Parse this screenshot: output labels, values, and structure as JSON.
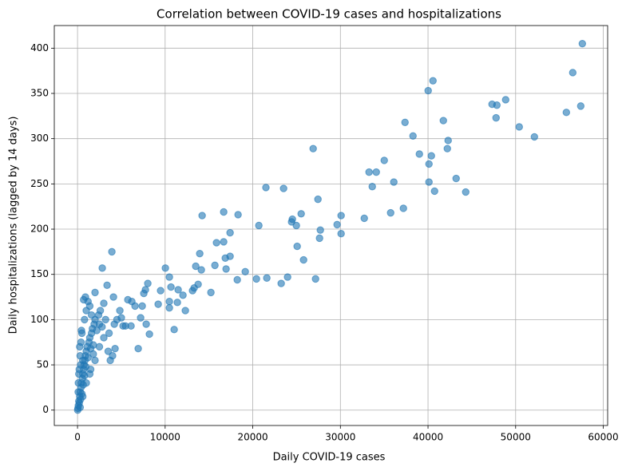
{
  "chart_data": {
    "type": "scatter",
    "title": "Correlation between COVID-19 cases and hospitalizations",
    "x_label": "Daily COVID-19 cases",
    "y_label": "Daily hospitalizations (lagged by 14 days)",
    "color": "#1f77b4",
    "grid": true,
    "xlim": [
      -2650,
      60500
    ],
    "ylim": [
      -17,
      425
    ],
    "xticks": [
      0,
      10000,
      20000,
      30000,
      40000,
      50000,
      60000
    ],
    "yticks": [
      0,
      50,
      100,
      150,
      200,
      250,
      300,
      350,
      400
    ],
    "x": [
      57612,
      56518,
      57430,
      55789,
      52142,
      50410,
      48861,
      47858,
      47311,
      47767,
      40565,
      40018,
      40383,
      40109,
      40109,
      40748,
      43209,
      44303,
      42297,
      42206,
      41750,
      39015,
      38286,
      37375,
      37192,
      36098,
      35734,
      35005,
      34093,
      33273,
      33638,
      32726,
      30082,
      30082,
      29626,
      26892,
      27439,
      27713,
      27621,
      27165,
      25524,
      25798,
      25068,
      24976,
      24430,
      24521,
      23518,
      21500,
      23974,
      23244,
      21604,
      20419,
      20693,
      19143,
      18323,
      18232,
      17411,
      17411,
      16955,
      16864,
      16682,
      16682,
      15862,
      15679,
      14130,
      14221,
      13948,
      15223,
      13765,
      13309,
      13492,
      13127,
      12033,
      12307,
      11395,
      11486,
      11030,
      10665,
      10483,
      10483,
      10027,
      10483,
      9480,
      9207,
      8022,
      7749,
      8204,
      7840,
      7566,
      7384,
      6563,
      7202,
      6928,
      6108,
      6199,
      5743,
      5470,
      5196,
      4831,
      4102,
      3920,
      2826,
      3373,
      3738,
      4284,
      50,
      100,
      150,
      200,
      250,
      300,
      350,
      400,
      450,
      500,
      550,
      600,
      650,
      700,
      750,
      800,
      850,
      900,
      950,
      1000,
      1100,
      1200,
      1300,
      1400,
      1500,
      1600,
      1700,
      1800,
      1900,
      2000,
      2200,
      2400,
      2600,
      2800,
      3000,
      100,
      200,
      300,
      400,
      500,
      600,
      800,
      1000,
      1200,
      1400,
      1600,
      1800,
      2000,
      2500,
      3000,
      3500,
      4000,
      20,
      80,
      150,
      250,
      350,
      450,
      700,
      900,
      2000,
      1500,
      2500,
      3200,
      3600,
      4500,
      5000,
      4200,
      600,
      1000,
      1400,
      300
    ],
    "values": [
      405,
      373,
      336,
      329,
      302,
      313,
      343,
      337,
      338,
      323,
      364,
      353,
      281,
      272,
      252,
      242,
      256,
      241,
      298,
      289,
      320,
      283,
      303,
      318,
      223,
      252,
      218,
      276,
      263,
      263,
      247,
      212,
      215,
      195,
      205,
      289,
      233,
      199,
      190,
      145,
      217,
      166,
      181,
      204,
      208,
      211,
      245,
      246,
      147,
      140,
      146,
      145,
      204,
      153,
      216,
      144,
      196,
      170,
      156,
      168,
      186,
      219,
      185,
      160,
      155,
      215,
      173,
      130,
      139,
      135,
      159,
      132,
      127,
      110,
      119,
      133,
      89,
      136,
      120,
      113,
      157,
      147,
      132,
      117,
      140,
      133,
      84,
      95,
      129,
      115,
      115,
      102,
      68,
      93,
      120,
      122,
      93,
      93,
      110,
      125,
      175,
      157,
      138,
      55,
      68,
      2,
      5,
      10,
      8,
      15,
      20,
      12,
      25,
      30,
      18,
      35,
      40,
      28,
      45,
      50,
      38,
      55,
      60,
      48,
      65,
      70,
      58,
      75,
      80,
      68,
      85,
      90,
      72,
      95,
      100,
      88,
      105,
      110,
      92,
      118,
      30,
      45,
      60,
      75,
      85,
      55,
      100,
      110,
      120,
      115,
      105,
      62,
      55,
      70,
      80,
      65,
      60,
      0,
      20,
      40,
      70,
      50,
      88,
      122,
      125,
      130,
      45,
      95,
      100,
      85,
      100,
      102,
      95,
      15,
      30,
      40,
      3
    ]
  }
}
